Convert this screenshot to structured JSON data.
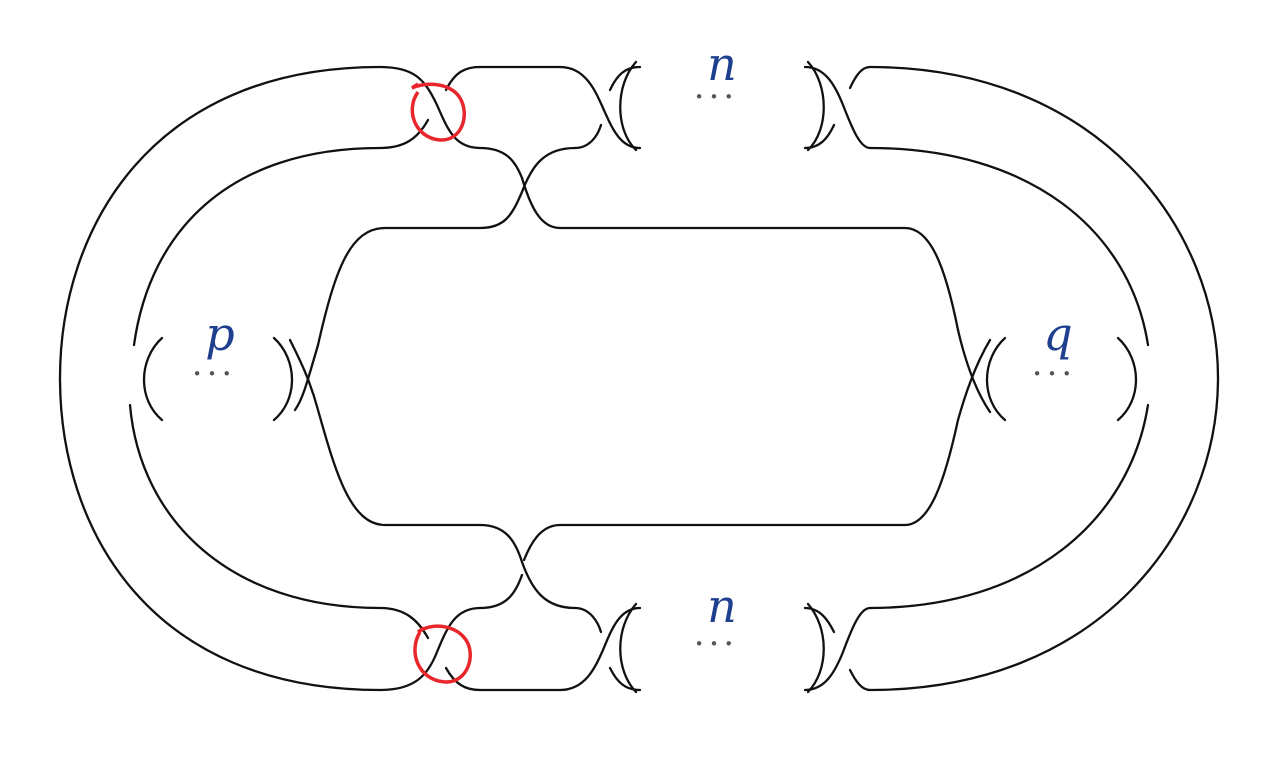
{
  "diagram": {
    "labels": {
      "top": "n",
      "bottom": "n",
      "left": "p",
      "right": "q"
    },
    "ellipsis": "···",
    "colors": {
      "strand": "#111111",
      "label": "#1f3f8f",
      "marker": "#e8262b"
    },
    "markers": [
      {
        "name": "top-left-crossing",
        "color": "#e8262b"
      },
      {
        "name": "bottom-left-crossing",
        "color": "#e8262b"
      }
    ]
  }
}
